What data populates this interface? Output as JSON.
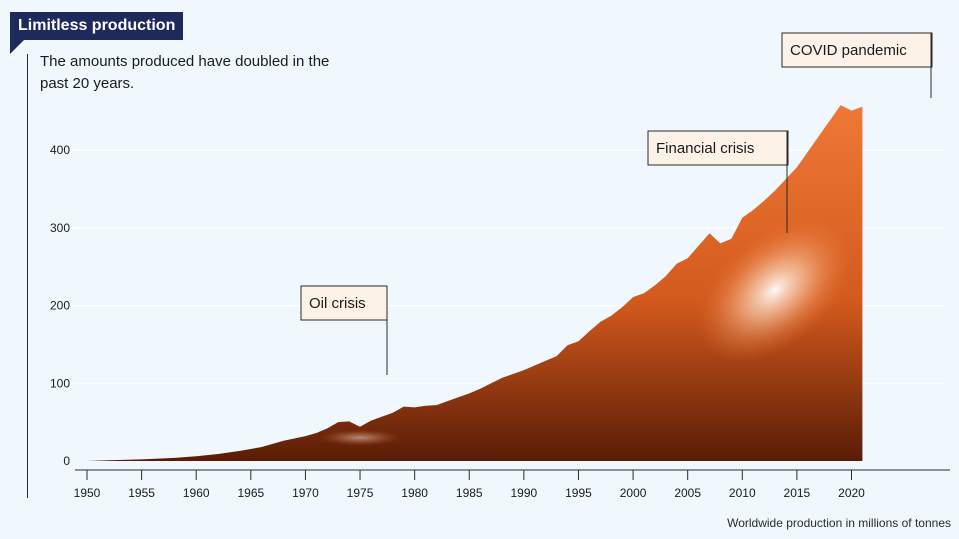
{
  "header": {
    "title": "Limitless production",
    "subtitle": "The amounts produced have doubled in the past 20 years."
  },
  "source_note": "Worldwide production in millions of tonnes",
  "colors": {
    "background": "#f0f8fd",
    "title_bg": "#1f2a5c",
    "area_light": "#ef7837",
    "area_mid": "#d35a1d",
    "area_dark": "#5a1c07",
    "annotation_bg": "#fdf2e8"
  },
  "chart_data": {
    "type": "area",
    "title": "Limitless production",
    "subtitle": "The amounts produced have doubled in the past 20 years.",
    "xlabel": "",
    "ylabel": "",
    "unit": "millions of tonnes",
    "xlim": [
      1950,
      2021
    ],
    "ylim": [
      0,
      460
    ],
    "x_ticks": [
      1950,
      1955,
      1960,
      1965,
      1970,
      1975,
      1980,
      1985,
      1990,
      1995,
      2000,
      2005,
      2010,
      2015,
      2020
    ],
    "y_ticks": [
      0,
      100,
      200,
      300,
      400
    ],
    "grid": true,
    "legend": "none",
    "series": [
      {
        "x": [
          1950,
          1952,
          1955,
          1958,
          1960,
          1962,
          1964,
          1966,
          1968,
          1970,
          1971,
          1972,
          1973,
          1974,
          1975,
          1976,
          1978,
          1979,
          1980,
          1981,
          1982,
          1984,
          1985,
          1986,
          1988,
          1990,
          1992,
          1993,
          1994,
          1995,
          1996,
          1997,
          1998,
          1999,
          2000,
          2001,
          2002,
          2003,
          2004,
          2005,
          2006,
          2007,
          2008,
          2009,
          2010,
          2011,
          2012,
          2013,
          2014,
          2015,
          2016,
          2017,
          2018,
          2019,
          2020,
          2021
        ],
        "values": [
          0,
          1,
          2,
          4,
          6,
          9,
          13,
          18,
          26,
          32,
          36,
          42,
          50,
          51,
          44,
          52,
          62,
          70,
          69,
          71,
          72,
          82,
          87,
          93,
          107,
          117,
          129,
          135,
          149,
          154,
          167,
          179,
          187,
          198,
          211,
          216,
          226,
          238,
          254,
          261,
          277,
          293,
          280,
          286,
          313,
          323,
          335,
          348,
          363,
          378,
          398,
          418,
          438,
          458,
          451,
          456
        ]
      }
    ],
    "annotations": [
      {
        "label": "Oil crisis",
        "x": 1975,
        "y": 44
      },
      {
        "label": "Financial crisis",
        "x": 2008,
        "y": 280
      },
      {
        "label": "COVID pandemic",
        "x": 2020,
        "y": 451
      }
    ]
  }
}
